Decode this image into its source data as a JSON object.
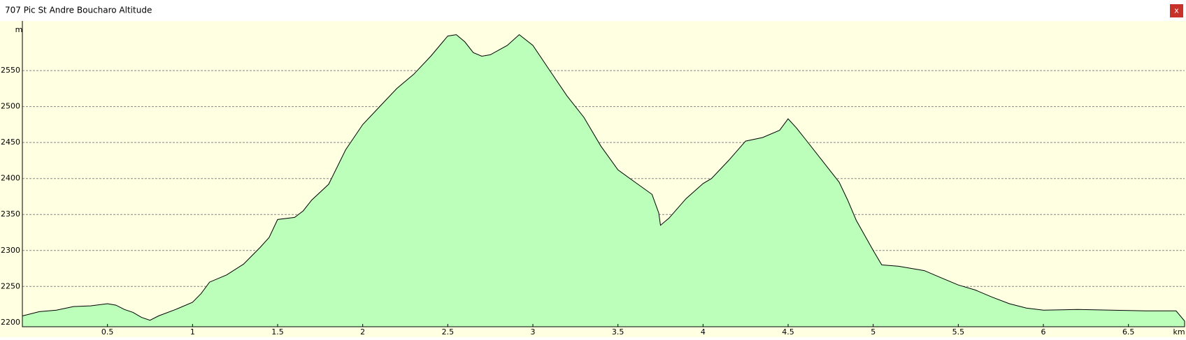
{
  "window": {
    "title": "707 Pic St Andre Boucharo Altitude",
    "close_label": "x"
  },
  "chart_data": {
    "type": "area",
    "x_label": "km",
    "y_label": "m",
    "x": [
      0,
      0.1,
      0.2,
      0.3,
      0.4,
      0.5,
      0.55,
      0.6,
      0.65,
      0.7,
      0.75,
      0.8,
      0.9,
      1.0,
      1.05,
      1.1,
      1.2,
      1.3,
      1.4,
      1.45,
      1.5,
      1.6,
      1.65,
      1.7,
      1.8,
      1.9,
      2.0,
      2.1,
      2.2,
      2.3,
      2.4,
      2.5,
      2.55,
      2.6,
      2.65,
      2.7,
      2.75,
      2.85,
      2.92,
      3.0,
      3.1,
      3.2,
      3.3,
      3.4,
      3.5,
      3.6,
      3.7,
      3.74,
      3.75,
      3.8,
      3.9,
      4.0,
      4.05,
      4.15,
      4.25,
      4.35,
      4.45,
      4.5,
      4.55,
      4.6,
      4.7,
      4.8,
      4.85,
      4.9,
      5.0,
      5.05,
      5.15,
      5.3,
      5.4,
      5.5,
      5.6,
      5.7,
      5.8,
      5.9,
      6.0,
      6.2,
      6.4,
      6.6,
      6.78,
      6.83
    ],
    "values": [
      2209,
      2215,
      2217,
      2222,
      2223,
      2226,
      2224,
      2218,
      2214,
      2207,
      2203,
      2209,
      2218,
      2228,
      2240,
      2256,
      2266,
      2281,
      2305,
      2318,
      2343,
      2346,
      2355,
      2370,
      2392,
      2440,
      2475,
      2500,
      2525,
      2545,
      2570,
      2598,
      2600,
      2590,
      2575,
      2570,
      2572,
      2585,
      2600,
      2585,
      2550,
      2515,
      2485,
      2445,
      2412,
      2395,
      2378,
      2352,
      2335,
      2345,
      2372,
      2393,
      2400,
      2425,
      2452,
      2457,
      2467,
      2483,
      2470,
      2455,
      2425,
      2395,
      2370,
      2342,
      2300,
      2280,
      2278,
      2272,
      2262,
      2252,
      2245,
      2235,
      2226,
      2220,
      2217,
      2218,
      2217,
      2216,
      2216,
      2202
    ],
    "fill": "#bbffbb",
    "line_color": "#000000",
    "background": "#ffffe1",
    "xlim": [
      0,
      6.83
    ],
    "ylim": [
      2194,
      2619
    ],
    "xticks": [
      0.5,
      1,
      1.5,
      2,
      2.5,
      3,
      3.5,
      4,
      4.5,
      5,
      5.5,
      6,
      6.5
    ],
    "yticks": [
      2200,
      2250,
      2300,
      2350,
      2400,
      2450,
      2500,
      2550
    ],
    "grid": true
  }
}
